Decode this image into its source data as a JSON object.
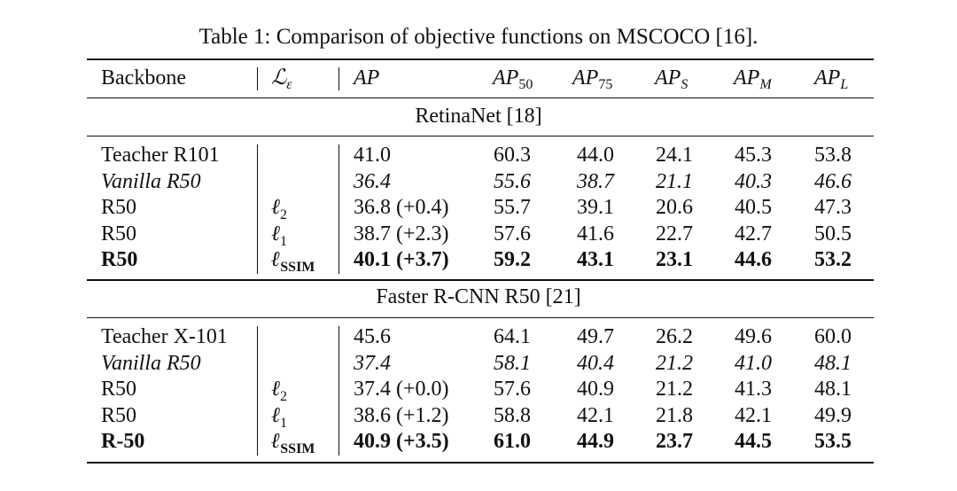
{
  "caption": "Table 1: Comparison of objective functions on MSCOCO [16].",
  "header": {
    "backbone": "Backbone",
    "loss_symbol": "ℒ",
    "loss_sub": "ε",
    "ap": "AP",
    "ap50": {
      "base": "AP",
      "sub": "50"
    },
    "ap75": {
      "base": "AP",
      "sub": "75"
    },
    "aps": {
      "base": "AP",
      "sub": "S"
    },
    "apm": {
      "base": "AP",
      "sub": "M"
    },
    "apl": {
      "base": "AP",
      "sub": "L"
    }
  },
  "sections": [
    {
      "title": "RetinaNet [18]",
      "rows": [
        {
          "backbone": "Teacher R101",
          "loss": "",
          "loss_sub": "",
          "ap": "41.0",
          "ap50": "60.3",
          "ap75": "44.0",
          "aps": "24.1",
          "apm": "45.3",
          "apl": "53.8",
          "style": "normal"
        },
        {
          "backbone": "Vanilla R50",
          "loss": "",
          "loss_sub": "",
          "ap": "36.4",
          "ap50": "55.6",
          "ap75": "38.7",
          "aps": "21.1",
          "apm": "40.3",
          "apl": "46.6",
          "style": "italic"
        },
        {
          "backbone": "R50",
          "loss": "ℓ",
          "loss_sub": "2",
          "ap": "36.8 (+0.4)",
          "ap50": "55.7",
          "ap75": "39.1",
          "aps": "20.6",
          "apm": "40.5",
          "apl": "47.3",
          "style": "normal"
        },
        {
          "backbone": "R50",
          "loss": "ℓ",
          "loss_sub": "1",
          "ap": "38.7 (+2.3)",
          "ap50": "57.6",
          "ap75": "41.6",
          "aps": "22.7",
          "apm": "42.7",
          "apl": "50.5",
          "style": "normal"
        },
        {
          "backbone": "R50",
          "loss": "ℓ",
          "loss_sub": "SSIM",
          "ap": "40.1 (+3.7)",
          "ap50": "59.2",
          "ap75": "43.1",
          "aps": "23.1",
          "apm": "44.6",
          "apl": "53.2",
          "style": "bold"
        }
      ]
    },
    {
      "title": "Faster R-CNN R50 [21]",
      "rows": [
        {
          "backbone": "Teacher X-101",
          "loss": "",
          "loss_sub": "",
          "ap": "45.6",
          "ap50": "64.1",
          "ap75": "49.7",
          "aps": "26.2",
          "apm": "49.6",
          "apl": "60.0",
          "style": "normal"
        },
        {
          "backbone": "Vanilla R50",
          "loss": "",
          "loss_sub": "",
          "ap": "37.4",
          "ap50": "58.1",
          "ap75": "40.4",
          "aps": "21.2",
          "apm": "41.0",
          "apl": "48.1",
          "style": "italic"
        },
        {
          "backbone": "R50",
          "loss": "ℓ",
          "loss_sub": "2",
          "ap": "37.4 (+0.0)",
          "ap50": "57.6",
          "ap75": "40.9",
          "aps": "21.2",
          "apm": "41.3",
          "apl": "48.1",
          "style": "normal"
        },
        {
          "backbone": "R50",
          "loss": "ℓ",
          "loss_sub": "1",
          "ap": "38.6 (+1.2)",
          "ap50": "58.8",
          "ap75": "42.1",
          "aps": "21.8",
          "apm": "42.1",
          "apl": "49.9",
          "style": "normal"
        },
        {
          "backbone": "R-50",
          "loss": "ℓ",
          "loss_sub": "SSIM",
          "ap": "40.9 (+3.5)",
          "ap50": "61.0",
          "ap75": "44.9",
          "aps": "23.7",
          "apm": "44.5",
          "apl": "53.5",
          "style": "bold"
        }
      ]
    }
  ]
}
